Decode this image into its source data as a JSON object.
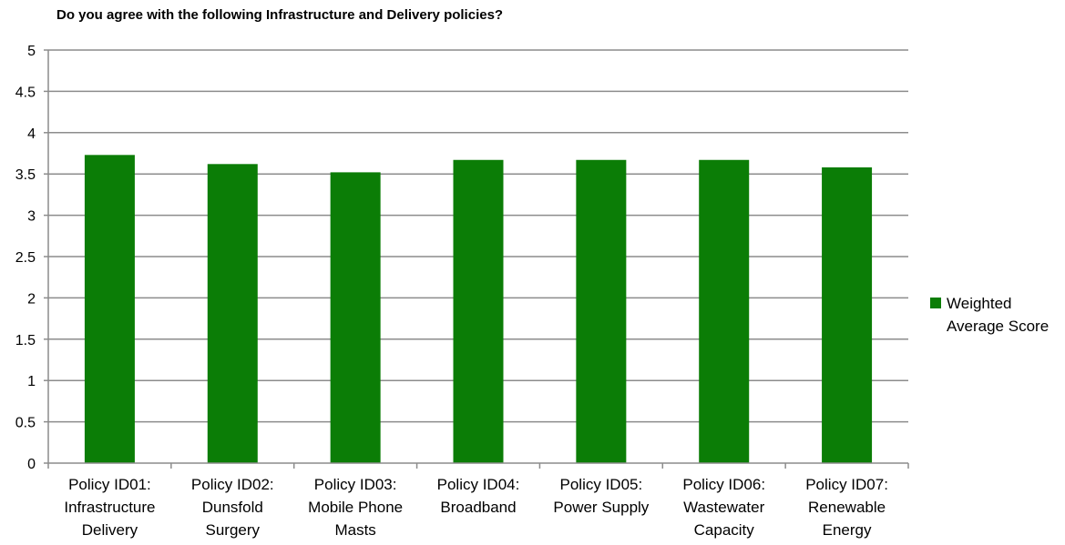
{
  "chart_data": {
    "type": "bar",
    "title": "Do you agree with the following Infrastructure and Delivery policies?",
    "xlabel": "",
    "ylabel": "",
    "ylim": [
      0,
      5
    ],
    "yticks": [
      "0",
      "0.5",
      "1",
      "1.5",
      "2",
      "2.5",
      "3",
      "3.5",
      "4",
      "4.5",
      "5"
    ],
    "grid": true,
    "legend_position": "right",
    "categories": [
      [
        "Policy ID01:",
        "Infrastructure",
        "Delivery"
      ],
      [
        "Policy ID02:",
        "Dunsfold",
        "Surgery"
      ],
      [
        "Policy ID03:",
        "Mobile Phone",
        "Masts"
      ],
      [
        "Policy ID04:",
        "Broadband"
      ],
      [
        "Policy ID05:",
        "Power Supply"
      ],
      [
        "Policy ID06:",
        "Wastewater",
        "Capacity"
      ],
      [
        "Policy ID07:",
        "Renewable",
        "Energy"
      ]
    ],
    "series": [
      {
        "name": [
          "Weighted",
          "Average Score"
        ],
        "color": "#0b7d06",
        "values": [
          3.73,
          3.62,
          3.52,
          3.67,
          3.67,
          3.67,
          3.58
        ]
      }
    ]
  }
}
